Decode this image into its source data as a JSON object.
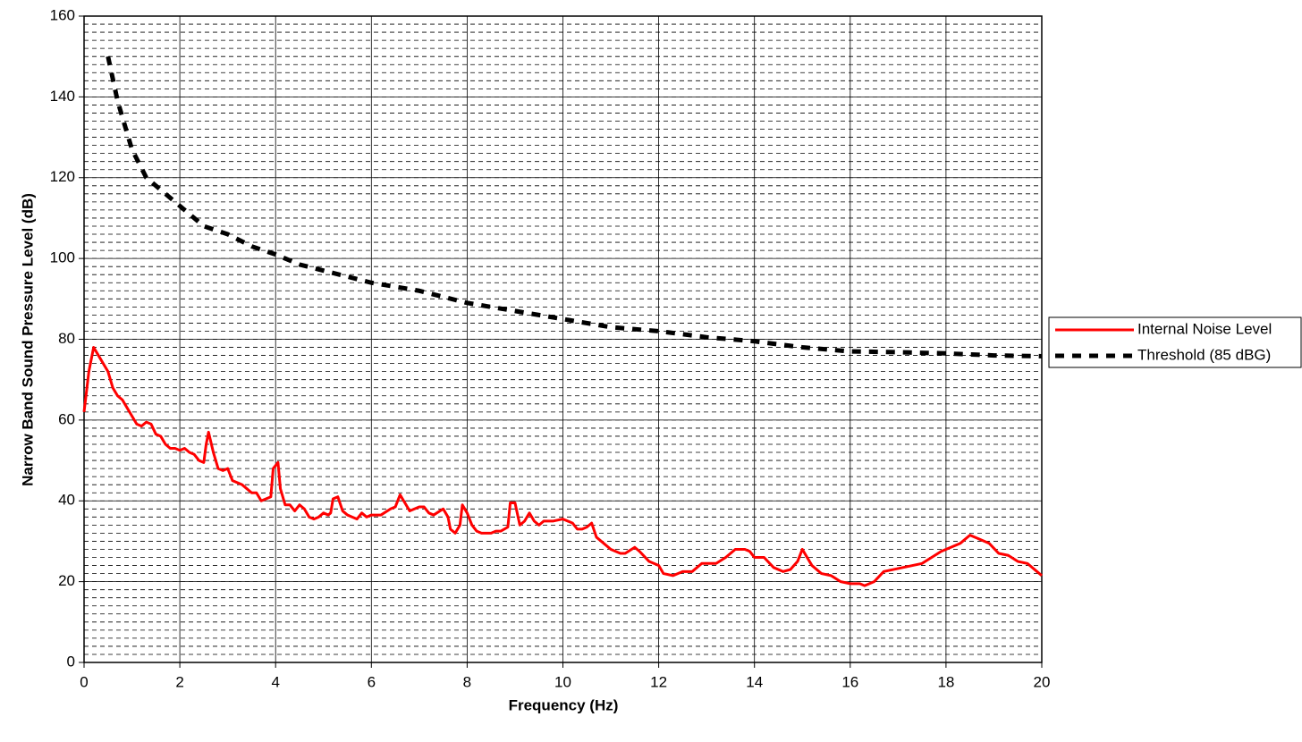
{
  "chart_data": {
    "type": "line",
    "xlabel": "Frequency (Hz)",
    "ylabel": "Narrow Band Sound Pressure Level (dB)",
    "xlim": [
      0,
      20
    ],
    "xticks": [
      0,
      2,
      4,
      6,
      8,
      10,
      12,
      14,
      16,
      18,
      20
    ],
    "ylim": [
      0,
      160
    ],
    "yticks": [
      0,
      20,
      40,
      60,
      80,
      100,
      120,
      140,
      160
    ],
    "grid": true,
    "minor_ystep": 2,
    "legend": "right",
    "series": [
      {
        "name": "Internal Noise Level",
        "color": "#ff0000",
        "style": "solid",
        "x": [
          0,
          0.1,
          0.2,
          0.3,
          0.4,
          0.5,
          0.6,
          0.7,
          0.8,
          0.9,
          1.0,
          1.1,
          1.2,
          1.3,
          1.4,
          1.5,
          1.6,
          1.7,
          1.8,
          1.9,
          2.0,
          2.1,
          2.2,
          2.3,
          2.4,
          2.5,
          2.55,
          2.6,
          2.7,
          2.8,
          2.9,
          3.0,
          3.1,
          3.2,
          3.3,
          3.4,
          3.5,
          3.6,
          3.7,
          3.8,
          3.9,
          3.95,
          4.05,
          4.1,
          4.2,
          4.3,
          4.4,
          4.5,
          4.6,
          4.7,
          4.8,
          4.9,
          5.0,
          5.1,
          5.15,
          5.2,
          5.3,
          5.4,
          5.5,
          5.6,
          5.7,
          5.8,
          5.9,
          6.0,
          6.2,
          6.4,
          6.5,
          6.6,
          6.7,
          6.8,
          7.0,
          7.1,
          7.2,
          7.3,
          7.5,
          7.6,
          7.65,
          7.75,
          7.85,
          7.9,
          8.0,
          8.1,
          8.2,
          8.3,
          8.5,
          8.6,
          8.7,
          8.85,
          8.9,
          9.0,
          9.1,
          9.2,
          9.3,
          9.4,
          9.5,
          9.6,
          9.8,
          10.0,
          10.2,
          10.3,
          10.4,
          10.5,
          10.6,
          10.7,
          10.8,
          11.0,
          11.2,
          11.3,
          11.5,
          11.6,
          11.8,
          12.0,
          12.1,
          12.3,
          12.5,
          12.7,
          12.9,
          13.2,
          13.4,
          13.6,
          13.8,
          13.9,
          14.0,
          14.2,
          14.4,
          14.6,
          14.75,
          14.9,
          15.0,
          15.2,
          15.4,
          15.6,
          15.8,
          16.0,
          16.2,
          16.3,
          16.5,
          16.7,
          16.9,
          17.1,
          17.3,
          17.5,
          17.7,
          17.9,
          18.1,
          18.3,
          18.5,
          18.7,
          18.9,
          19.1,
          19.3,
          19.5,
          19.7,
          19.9,
          20
        ],
        "values": [
          62,
          72,
          78,
          76,
          74,
          72,
          68,
          66,
          65,
          63,
          61,
          59,
          58.5,
          59.5,
          59,
          56.5,
          56,
          54,
          53,
          53,
          52.5,
          53,
          52,
          51.5,
          50,
          49.5,
          54,
          57,
          52,
          48,
          47.5,
          48,
          45,
          44.5,
          44,
          43,
          42,
          42,
          40,
          40.5,
          41,
          48,
          49.5,
          43,
          39,
          39,
          37.5,
          39,
          38,
          36,
          35.5,
          36,
          37,
          36.5,
          37,
          40.5,
          41,
          37.5,
          36.5,
          36,
          35.5,
          37,
          36,
          36.5,
          36.5,
          38,
          38.5,
          41.5,
          39.5,
          37.5,
          38.5,
          38.5,
          37,
          36.5,
          38,
          36,
          33,
          32,
          34,
          39,
          37,
          34,
          32.5,
          32,
          32,
          32.5,
          32.5,
          33.5,
          39.5,
          39.5,
          34,
          35,
          37,
          35,
          34,
          35,
          35,
          35.5,
          34.5,
          33,
          33,
          33.5,
          34.5,
          31,
          30,
          28,
          27,
          27,
          28.5,
          27.5,
          25,
          24,
          22,
          21.5,
          22.5,
          22.5,
          24.5,
          24.5,
          26,
          28,
          28,
          27.5,
          26,
          26,
          23.5,
          22.5,
          23,
          25,
          28,
          24,
          22,
          21.5,
          20,
          19.5,
          19.5,
          19,
          20,
          22.5,
          23,
          23.5,
          24,
          24.5,
          26,
          27.5,
          28.5,
          29.5,
          31.5,
          30.5,
          29.5,
          27,
          26.5,
          25,
          24.5,
          22.5,
          21.5
        ]
      },
      {
        "name": "Threshold (85 dBG)",
        "color": "#000000",
        "style": "dashed",
        "x": [
          0.5,
          0.7,
          1,
          1.3,
          1.6,
          2,
          2.5,
          3,
          3.5,
          4,
          4.5,
          5,
          5.5,
          6,
          7,
          8,
          9,
          10,
          11,
          12,
          13,
          14,
          15,
          16,
          17,
          18,
          19,
          20
        ],
        "values": [
          150,
          139,
          127,
          120,
          117,
          113,
          108,
          106,
          103,
          101,
          98.5,
          97,
          95.5,
          94,
          92,
          89,
          87,
          85,
          83,
          82,
          80.5,
          79.5,
          78,
          77,
          76.8,
          76.5,
          76,
          75.8
        ]
      }
    ]
  }
}
